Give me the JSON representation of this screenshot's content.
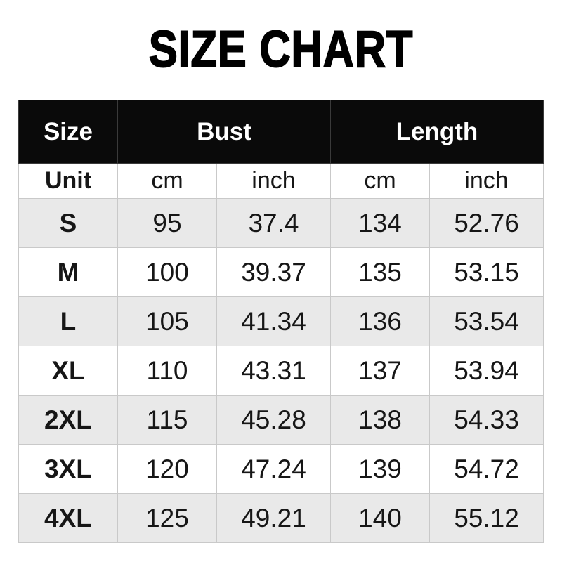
{
  "title": "SIZE CHART",
  "colors": {
    "header_bg": "#0a0a0a",
    "header_text": "#ffffff",
    "row_alt_bg": "#e9e9e9",
    "row_bg": "#ffffff",
    "border": "#c9c9c9",
    "header_border": "#3a3a3a",
    "text": "#161616"
  },
  "chart_data": {
    "type": "table",
    "title": "SIZE CHART",
    "column_groups": [
      {
        "label": "Size",
        "span": 1
      },
      {
        "label": "Bust",
        "span": 2
      },
      {
        "label": "Length",
        "span": 2
      }
    ],
    "unit_row": [
      "Unit",
      "cm",
      "inch",
      "cm",
      "inch"
    ],
    "rows": [
      [
        "S",
        "95",
        "37.4",
        "134",
        "52.76"
      ],
      [
        "M",
        "100",
        "39.37",
        "135",
        "53.15"
      ],
      [
        "L",
        "105",
        "41.34",
        "136",
        "53.54"
      ],
      [
        "XL",
        "110",
        "43.31",
        "137",
        "53.94"
      ],
      [
        "2XL",
        "115",
        "45.28",
        "138",
        "54.33"
      ],
      [
        "3XL",
        "120",
        "47.24",
        "139",
        "54.72"
      ],
      [
        "4XL",
        "125",
        "49.21",
        "140",
        "55.12"
      ]
    ],
    "layout": {
      "zebra_striping": "rows S, L, 2XL, 4XL shaded gray",
      "first_column_bold": true,
      "header_style": "black background, white bold text"
    }
  }
}
